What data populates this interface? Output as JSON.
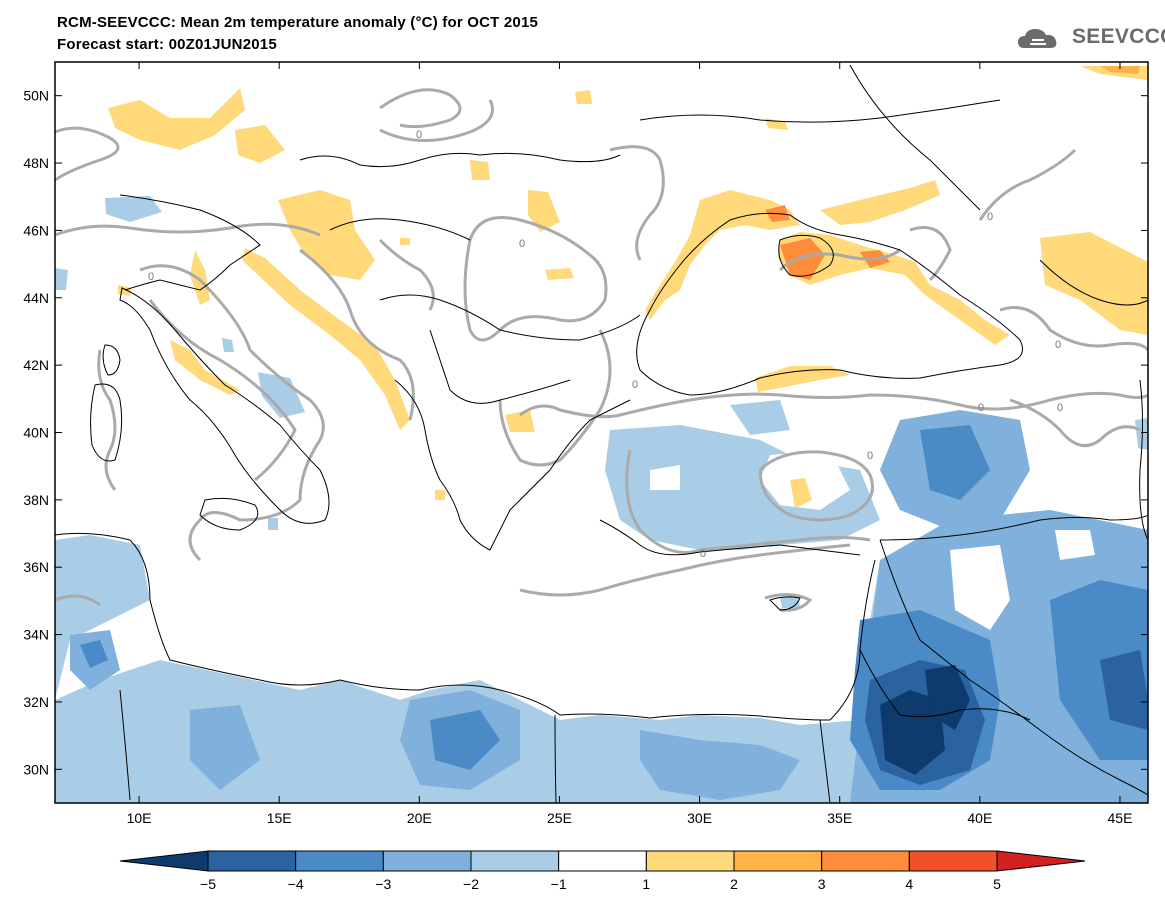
{
  "header": {
    "title": "RCM-SEEVCCC: Mean 2m temperature anomaly (°C) for OCT 2015",
    "subtitle": "Forecast start: 00Z01JUN2015",
    "logo_text": "SEEVCCC"
  },
  "map": {
    "lat_labels": [
      "50N",
      "48N",
      "46N",
      "44N",
      "42N",
      "40N",
      "38N",
      "36N",
      "34N",
      "32N",
      "30N"
    ],
    "lon_labels": [
      "10E",
      "15E",
      "20E",
      "25E",
      "30E",
      "35E",
      "40E",
      "45E"
    ],
    "contour_label": "0",
    "lon_range": [
      7,
      46
    ],
    "lat_range": [
      29,
      51
    ]
  },
  "colorbar": {
    "labels": [
      "−5",
      "−4",
      "−3",
      "−2",
      "−1",
      "1",
      "2",
      "3",
      "4",
      "5"
    ],
    "colors": [
      "#0d3b6e",
      "#2a63a0",
      "#4a8ac7",
      "#7fb1dc",
      "#a9cde6",
      "#ffffff",
      "#ffd97a",
      "#ffb347",
      "#ff8c3a",
      "#f0502a",
      "#d42020"
    ]
  },
  "legend_colors": {
    "contour": "#aaaaaa",
    "border": "#000000"
  }
}
